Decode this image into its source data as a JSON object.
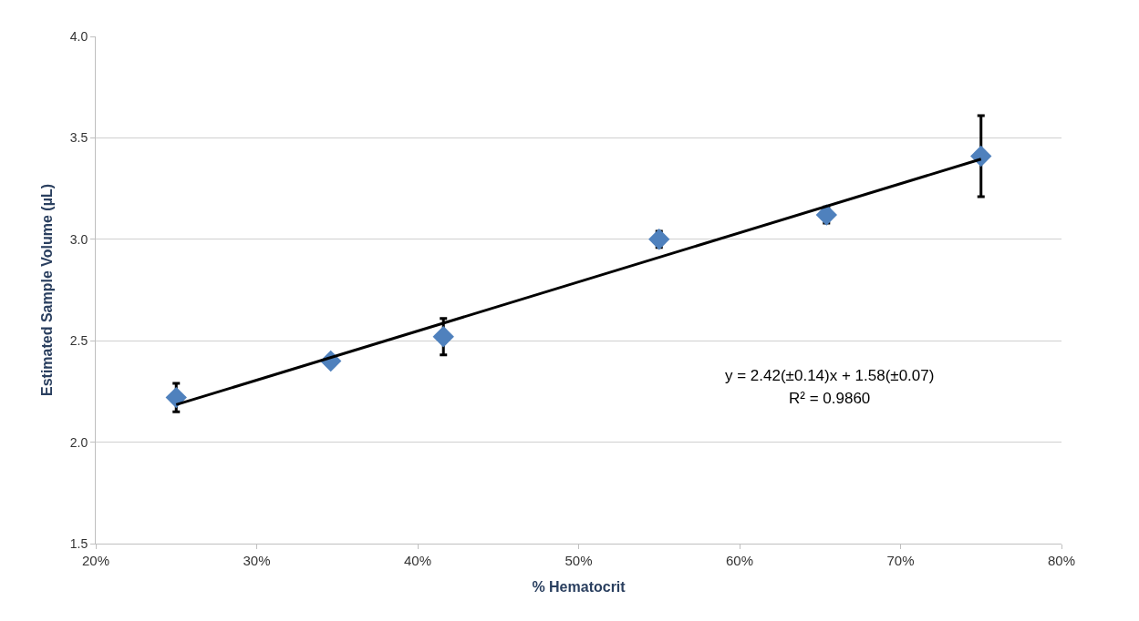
{
  "chart_data": {
    "type": "scatter",
    "xlabel": "% Hematocrit",
    "ylabel": "Estimated Sample Volume (µL)",
    "annotations": [
      "y = 2.42(±0.14)x + 1.58(±0.07)",
      "R² = 0.9860"
    ],
    "marker": "diamond",
    "grid": "y",
    "series": [
      {
        "color": "#4f81bd",
        "x": [
          0.25,
          0.346,
          0.416,
          0.55,
          0.654,
          0.75
        ],
        "values": [
          2.22,
          2.4,
          2.52,
          3.0,
          3.12,
          3.41
        ],
        "errors": [
          0.07,
          null,
          0.09,
          0.04,
          0.04,
          0.2
        ]
      },
      {
        "type": "line",
        "color": "#000000",
        "marker": "none",
        "x": [
          0.25,
          0.75
        ],
        "values": [
          2.185,
          3.395
        ]
      }
    ],
    "xlim": [
      0.2,
      0.8
    ],
    "xticks": [
      {
        "value": 0.2,
        "label": "20%"
      },
      {
        "value": 0.3,
        "label": "30%"
      },
      {
        "value": 0.4,
        "label": "40%"
      },
      {
        "value": 0.5,
        "label": "50%"
      },
      {
        "value": 0.6,
        "label": "60%"
      },
      {
        "value": 0.7,
        "label": "70%"
      },
      {
        "value": 0.8,
        "label": "80%"
      }
    ],
    "ylim": [
      1.5,
      4.0
    ],
    "yticks": [
      {
        "value": 1.5,
        "label": "1.5"
      },
      {
        "value": 2.0,
        "label": "2.0"
      },
      {
        "value": 2.5,
        "label": "2.5"
      },
      {
        "value": 3.0,
        "label": "3.0"
      },
      {
        "value": 3.5,
        "label": "3.5"
      },
      {
        "value": 4.0,
        "label": "4.0"
      }
    ]
  }
}
